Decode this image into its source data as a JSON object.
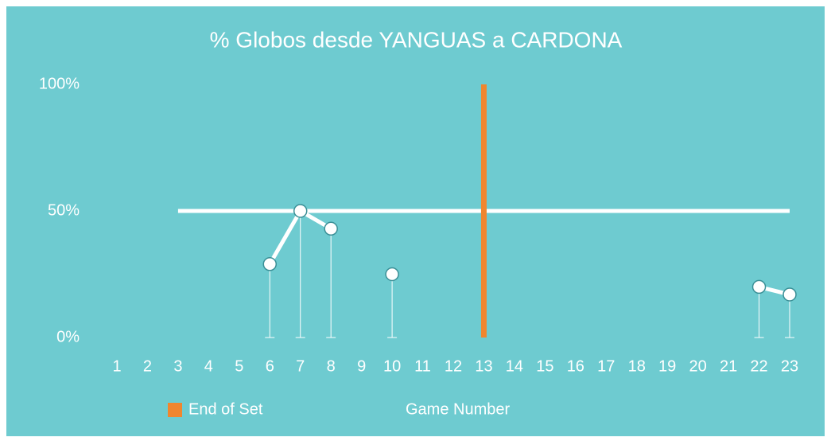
{
  "chart_data": {
    "type": "line",
    "title": "% Globos desde YANGUAS a CARDONA",
    "x_label": "Game Number",
    "x": [
      1,
      2,
      3,
      4,
      5,
      6,
      7,
      8,
      9,
      10,
      11,
      12,
      13,
      14,
      15,
      16,
      17,
      18,
      19,
      20,
      21,
      22,
      23
    ],
    "xlim": [
      1,
      23
    ],
    "series": [
      {
        "color": "#ffffff",
        "values": [
          null,
          null,
          null,
          null,
          null,
          29,
          50,
          43,
          null,
          25,
          null,
          null,
          null,
          null,
          null,
          null,
          null,
          null,
          null,
          null,
          null,
          20,
          17
        ]
      }
    ],
    "reference_line": {
      "value": 50,
      "from": 3,
      "to": 23,
      "color": "#ffffff"
    },
    "end_of_set": {
      "name": "End of Set",
      "x": 13,
      "color": "#f0862e"
    },
    "ylim": [
      0,
      100
    ],
    "yticks": [
      {
        "value": 0,
        "label": "0%"
      },
      {
        "value": 50,
        "label": "50%"
      },
      {
        "value": 100,
        "label": "100%"
      }
    ],
    "background": "#6ecbd0"
  }
}
